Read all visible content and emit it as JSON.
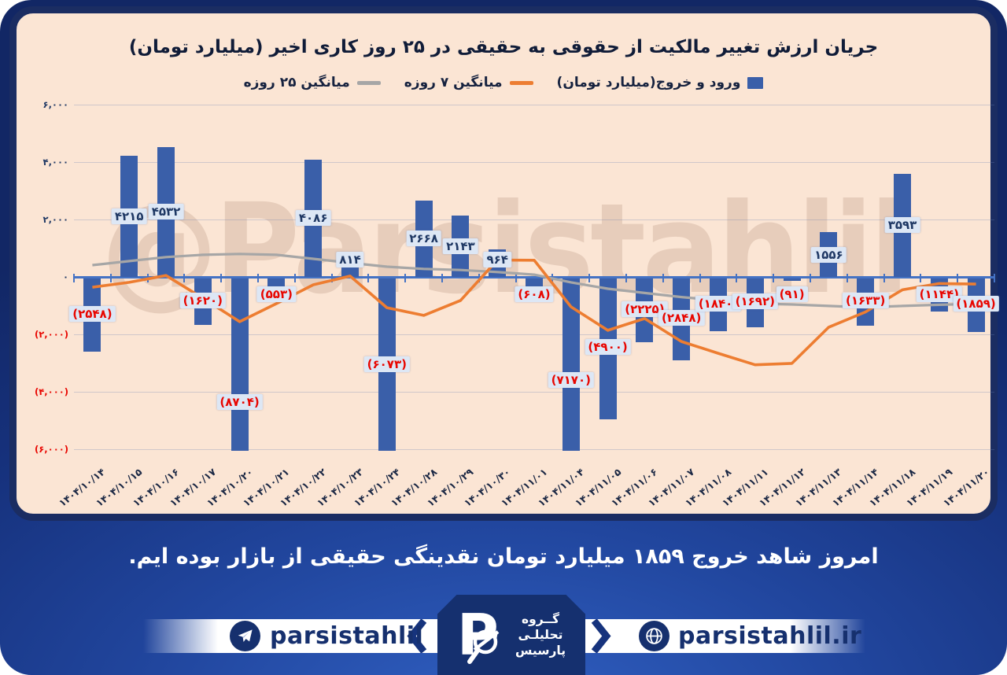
{
  "title": "جریان ارزش تغییر مالکیت از حقوقی به حقیقی در ۲۵ روز کاری اخیر (میلیارد تومان)",
  "watermark": "@Parsistahlil",
  "legend": {
    "bars_label": "ورود و خروج(میلیارد تومان)",
    "ma7_label": "میانگین ۷ روزه",
    "ma25_label": "میانگین ۲۵ روزه"
  },
  "colors": {
    "bar": "#3a5fa9",
    "ma7": "#ed7d31",
    "ma25": "#a6a6a6",
    "axis": "#4472c4",
    "positive_label": "#1f3864",
    "negative_label": "#e80600",
    "panel_bg": "#fbe5d4",
    "card_navy": "#16337d",
    "label_box": "#dde7f5"
  },
  "y_axis": {
    "ticks": [
      {
        "value": 6000,
        "label": "۶,۰۰۰"
      },
      {
        "value": 4000,
        "label": "۴,۰۰۰"
      },
      {
        "value": 2000,
        "label": "۲,۰۰۰"
      },
      {
        "value": 0,
        "label": "۰"
      },
      {
        "value": -2000,
        "label": "(۲,۰۰۰)"
      },
      {
        "value": -4000,
        "label": "(۴,۰۰۰)"
      },
      {
        "value": -6000,
        "label": "(۶,۰۰۰)"
      }
    ]
  },
  "chart_data": {
    "type": "bar",
    "title": "جریان ارزش تغییر مالکیت از حقوقی به حقیقی در ۲۵ روز کاری اخیر (میلیارد تومان)",
    "categories": [
      "۱۴۰۴/۱۰/۱۴",
      "۱۴۰۴/۱۰/۱۵",
      "۱۴۰۴/۱۰/۱۶",
      "۱۴۰۴/۱۰/۱۷",
      "۱۴۰۴/۱۰/۲۰",
      "۱۴۰۴/۱۰/۲۱",
      "۱۴۰۴/۱۰/۲۲",
      "۱۴۰۴/۱۰/۲۳",
      "۱۴۰۴/۱۰/۲۴",
      "۱۴۰۴/۱۰/۲۸",
      "۱۴۰۴/۱۰/۲۹",
      "۱۴۰۴/۱۰/۳۰",
      "۱۴۰۴/۱۱/۰۱",
      "۱۴۰۴/۱۱/۰۴",
      "۱۴۰۴/۱۱/۰۵",
      "۱۴۰۴/۱۱/۰۶",
      "۱۴۰۴/۱۱/۰۷",
      "۱۴۰۴/۱۱/۰۸",
      "۱۴۰۴/۱۱/۱۱",
      "۱۴۰۴/۱۱/۱۲",
      "۱۴۰۴/۱۱/۱۳",
      "۱۴۰۴/۱۱/۱۴",
      "۱۴۰۴/۱۱/۱۸",
      "۱۴۰۴/۱۱/۱۹",
      "۱۴۰۴/۱۱/۲۰"
    ],
    "series": [
      {
        "name": "ورود و خروج(میلیارد تومان)",
        "type": "bar",
        "values": [
          -2548,
          4215,
          4532,
          -1620,
          -8704,
          -553,
          4086,
          814,
          -6073,
          2668,
          2143,
          964,
          -608,
          -7170,
          -4900,
          -2225,
          -2848,
          -1840,
          -1692,
          -91,
          1556,
          -1633,
          3593,
          -1144,
          -1859
        ],
        "labels": [
          "(۲۵۴۸)",
          "۴۲۱۵",
          "۴۵۳۲",
          "(۱۶۲۰)",
          "(۸۷۰۴)",
          "(۵۵۳)",
          "۴۰۸۶",
          "۸۱۴",
          "(۶۰۷۳)",
          "۲۶۶۸",
          "۲۱۴۳",
          "۹۶۴",
          "(۶۰۸)",
          "(۷۱۷۰)",
          "(۴۹۰۰)",
          "(۲۲۲۵)",
          "(۲۸۴۸)",
          "(۱۸۴۰)",
          "(۱۶۹۲)",
          "(۹۱)",
          "۱۵۵۶",
          "(۱۶۳۳)",
          "۳۵۹۳",
          "(۱۱۴۴)",
          "(۱۸۵۹)"
        ]
      },
      {
        "name": "میانگین ۷ روزه",
        "type": "line",
        "values": [
          -360,
          -190,
          50,
          -740,
          -1560,
          -930,
          -275,
          30,
          -1070,
          -1340,
          -820,
          590,
          580,
          -1040,
          -1860,
          -1450,
          -2250,
          -2660,
          -3060,
          -3010,
          -1750,
          -1220,
          -450,
          -230,
          -250
        ]
      },
      {
        "name": "میانگین ۲۵ روزه",
        "type": "line",
        "values": [
          410,
          550,
          690,
          770,
          800,
          770,
          630,
          490,
          355,
          280,
          240,
          170,
          80,
          -190,
          -410,
          -560,
          -700,
          -820,
          -930,
          -960,
          -1010,
          -1060,
          -1010,
          -970,
          -940
        ]
      }
    ],
    "ylim": [
      -6220,
      6250
    ],
    "gridlines": [
      6000,
      4000,
      2000,
      -2000,
      -4000,
      -6000
    ],
    "legend_position": "top",
    "x_tick_rotation": -38
  },
  "note": "امروز شاهد خروج ۱۸۵۹ میلیارد تومان نقدینگی حقیقی از بازار بوده ایم.",
  "footer": {
    "telegram_handle": "parsistahlil",
    "website": "parsistahlil.ir",
    "logo_letter": "P",
    "logo_lines": [
      "گــروه",
      "تحلیلـی",
      "پارسیس"
    ]
  }
}
